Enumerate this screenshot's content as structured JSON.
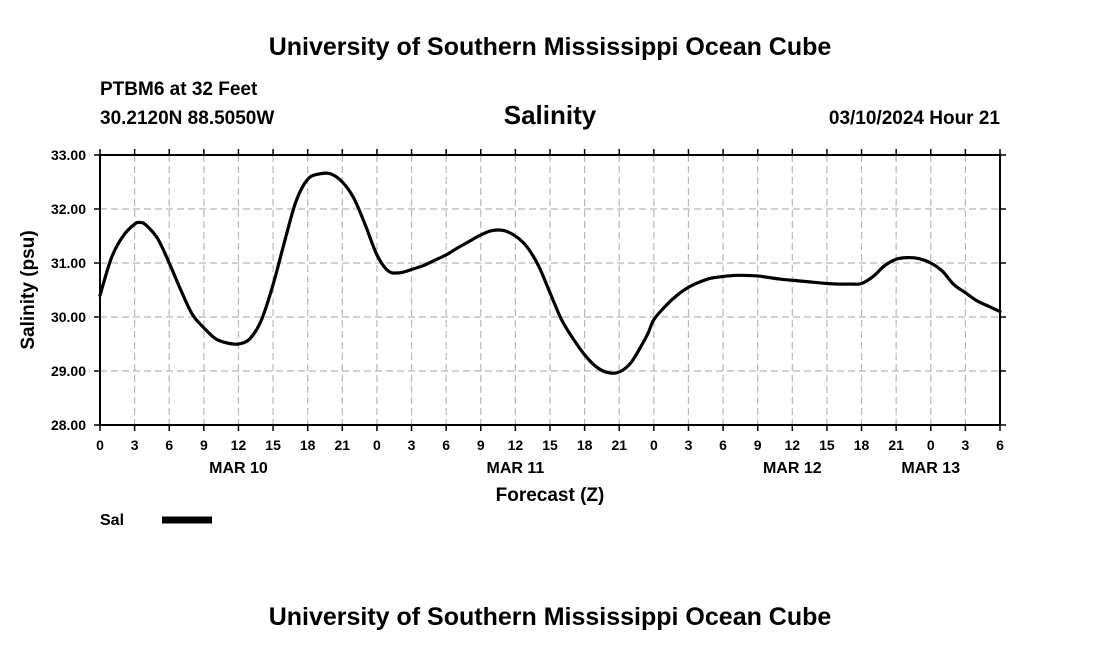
{
  "header": {
    "title": "University of Southern Mississippi Ocean Cube",
    "station": "PTBM6 at 32 Feet",
    "coords": "30.2120N  88.5050W",
    "timestamp": "03/10/2024 Hour 21",
    "footer_title": "University of Southern Mississippi Ocean Cube"
  },
  "legend": {
    "label": "Sal"
  },
  "chart_data": {
    "type": "line",
    "title": "Salinity",
    "xlabel": "Forecast (Z)",
    "ylabel": "Salinity (psu)",
    "ylim": [
      28,
      33
    ],
    "yticks": [
      "28.00",
      "29.00",
      "30.00",
      "31.00",
      "32.00",
      "33.00"
    ],
    "xlim": [
      0,
      78
    ],
    "xtick_step_hours": 3,
    "xtick_labels": [
      "0",
      "3",
      "6",
      "9",
      "12",
      "15",
      "18",
      "21",
      "0",
      "3",
      "6",
      "9",
      "12",
      "15",
      "18",
      "21",
      "0",
      "3",
      "6",
      "9",
      "12",
      "15",
      "18",
      "21",
      "0",
      "3",
      "6"
    ],
    "date_labels": [
      {
        "label": "MAR 10",
        "hour": 12
      },
      {
        "label": "MAR 11",
        "hour": 36
      },
      {
        "label": "MAR 12",
        "hour": 60
      },
      {
        "label": "MAR 13",
        "hour": 72
      }
    ],
    "grid": true,
    "series": [
      {
        "name": "Sal",
        "color": "#000000",
        "x": [
          0,
          1,
          2,
          3,
          3.5,
          4,
          5,
          6,
          7,
          8,
          9,
          10,
          11,
          12,
          13,
          14,
          15,
          16,
          17,
          18,
          19,
          20,
          21,
          22,
          23,
          24,
          25,
          26,
          27,
          28,
          29,
          30,
          31,
          32,
          33,
          34,
          35,
          36,
          37,
          38,
          39,
          40,
          41,
          42,
          43,
          44,
          45,
          46,
          47,
          47.5,
          48,
          49,
          50,
          51,
          52,
          53,
          54,
          55,
          56,
          57,
          58,
          59,
          60,
          61,
          62,
          63,
          64,
          65,
          66,
          67,
          68,
          69,
          70,
          71,
          72,
          73,
          74,
          75,
          76,
          77,
          78
        ],
        "values": [
          30.4,
          31.1,
          31.5,
          31.72,
          31.75,
          31.7,
          31.45,
          31.0,
          30.5,
          30.05,
          29.8,
          29.6,
          29.52,
          29.5,
          29.6,
          29.95,
          30.6,
          31.4,
          32.15,
          32.55,
          32.65,
          32.65,
          32.5,
          32.2,
          31.7,
          31.15,
          30.85,
          30.82,
          30.88,
          30.95,
          31.05,
          31.15,
          31.28,
          31.4,
          31.52,
          31.6,
          31.6,
          31.5,
          31.3,
          30.95,
          30.45,
          29.95,
          29.6,
          29.3,
          29.08,
          28.97,
          28.98,
          29.15,
          29.5,
          29.7,
          29.95,
          30.2,
          30.4,
          30.55,
          30.65,
          30.72,
          30.75,
          30.77,
          30.77,
          30.76,
          30.73,
          30.7,
          30.68,
          30.66,
          30.64,
          30.62,
          30.61,
          30.61,
          30.62,
          30.75,
          30.95,
          31.07,
          31.1,
          31.08,
          31.0,
          30.85,
          30.6,
          30.45,
          30.3,
          30.2,
          30.1
        ]
      }
    ]
  }
}
